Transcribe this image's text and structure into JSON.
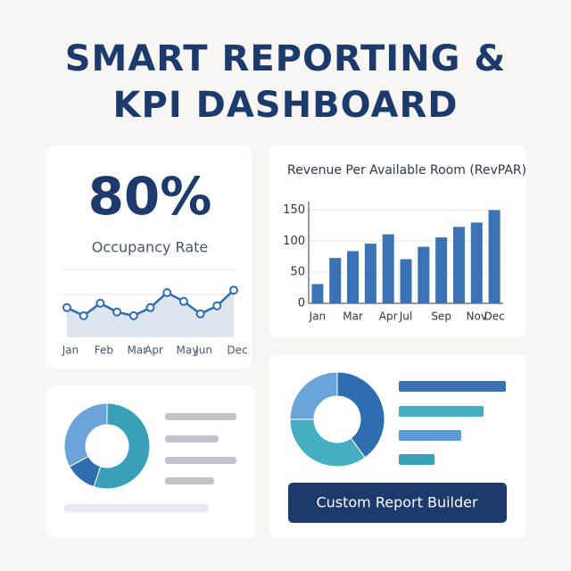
{
  "header": {
    "title": "SMART REPORTING & KPI DASHBOARD"
  },
  "kpi": {
    "value": "80%",
    "label": "Occupancy Rate"
  },
  "occupancy_chart": {
    "type": "line",
    "categories": [
      "Jan",
      null,
      "Feb",
      null,
      "Mar",
      "Apr",
      null,
      "May",
      "Jun",
      null,
      "Dec"
    ],
    "values": [
      36,
      23,
      43,
      29,
      23,
      36,
      60,
      46,
      26,
      39,
      64
    ],
    "ylim": [
      0,
      100
    ],
    "color": "#2f6db0"
  },
  "revpar_chart": {
    "type": "bar",
    "title": "Revenue Per Available Room (RevPAR)",
    "categories": [
      "Jan",
      null,
      "Mar",
      null,
      "Apr",
      "Jul",
      null,
      "Sep",
      null,
      "Nov",
      "Dec"
    ],
    "values": [
      31,
      73,
      84,
      96,
      111,
      71,
      91,
      106,
      123,
      130,
      150
    ],
    "ylim": [
      0,
      155
    ],
    "yticks": [
      0,
      50,
      100,
      150
    ],
    "grid": true,
    "color": "#3a72b4"
  },
  "donut_left": {
    "type": "pie",
    "values": [
      55,
      12,
      33
    ],
    "colors": [
      "#3aa0b8",
      "#2f6db0",
      "#6aa4d8"
    ]
  },
  "donut_right": {
    "type": "pie",
    "values": [
      40,
      35,
      25
    ],
    "colors": [
      "#2f6db0",
      "#45aec0",
      "#6aa4d8"
    ]
  },
  "button": {
    "label": "Custom Report Builder"
  }
}
